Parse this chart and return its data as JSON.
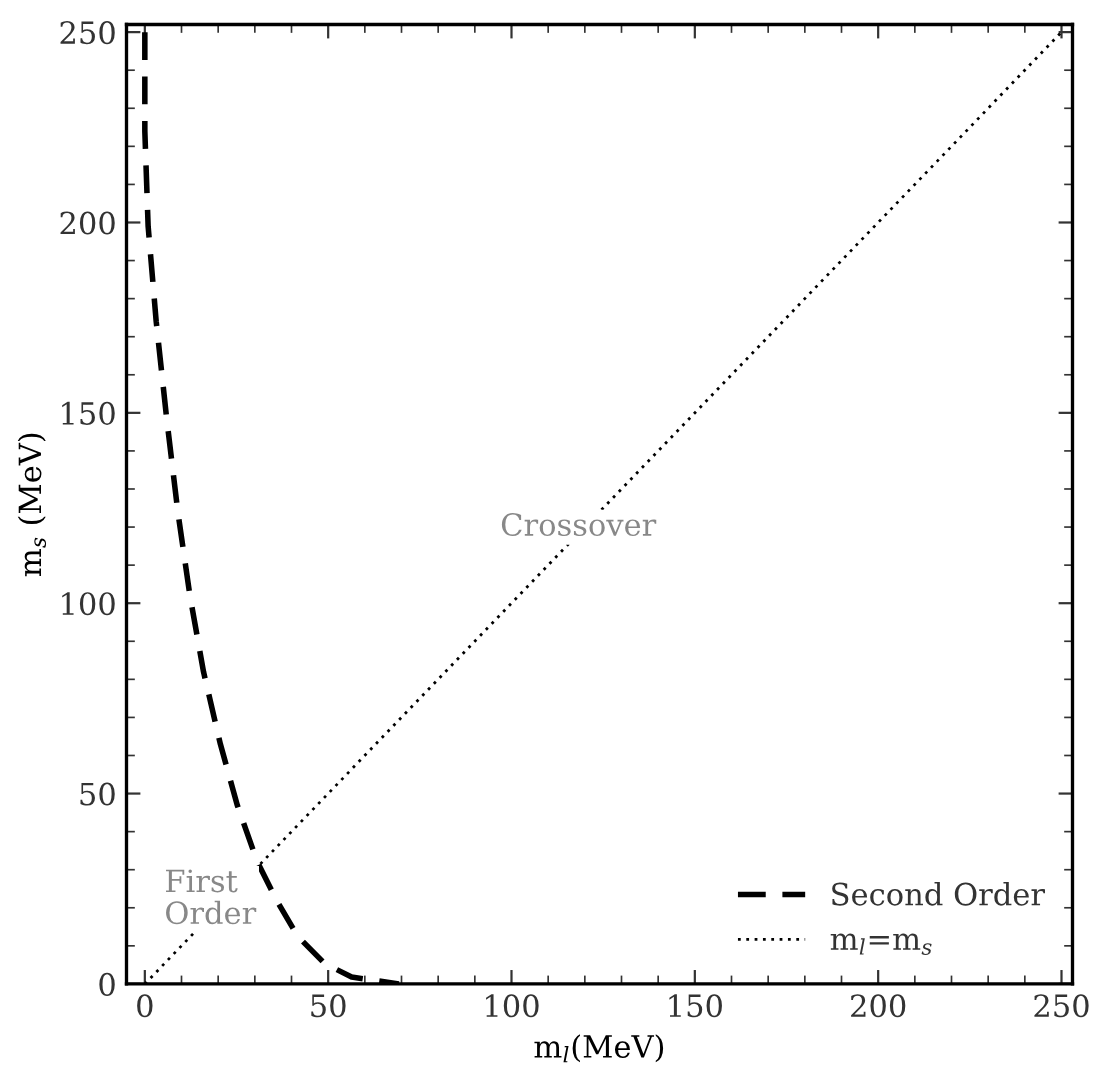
{
  "chart_data": {
    "type": "line",
    "xlabel": "m$_{l}$(MeV)",
    "ylabel": "m$_{s}$ (MeV)",
    "xlim": [
      -5,
      253
    ],
    "ylim": [
      0,
      252
    ],
    "xticks": [
      0,
      50,
      100,
      150,
      200,
      250
    ],
    "yticks": [
      0,
      50,
      100,
      150,
      200,
      250
    ],
    "grid": false,
    "legend": "bottom right",
    "series": [
      {
        "name": "Second Order",
        "color": "#000000",
        "line_style": "dashed",
        "x": [
          0,
          0,
          0.9,
          3.1,
          5.9,
          9,
          12.3,
          16,
          20.6,
          25.2,
          30.7,
          36.2,
          41.7,
          49,
          56.4,
          69.3
        ],
        "values": [
          250,
          224,
          199,
          174,
          149,
          124,
          102,
          82,
          63,
          47,
          32,
          21.5,
          12.5,
          5.4,
          1.8,
          0
        ]
      },
      {
        "name": "m$_{l}$=m$_{s}$",
        "color": "#000000",
        "line_style": "dotted",
        "x": [
          0,
          250
        ],
        "values": [
          0,
          250
        ]
      }
    ],
    "annotations": [
      "Crossover",
      "First\nOrder"
    ]
  }
}
